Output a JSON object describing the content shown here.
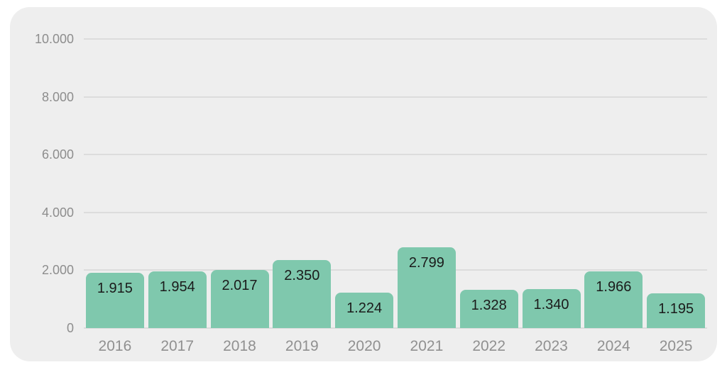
{
  "chart_data": {
    "type": "bar",
    "title": "",
    "xlabel": "",
    "ylabel": "",
    "categories": [
      "2016",
      "2017",
      "2018",
      "2019",
      "2020",
      "2021",
      "2022",
      "2023",
      "2024",
      "2025"
    ],
    "values": [
      1915,
      1954,
      2017,
      2350,
      1224,
      2799,
      1328,
      1340,
      1966,
      1195
    ],
    "bar_labels": [
      "1.915",
      "1.954",
      "2.017",
      "2.350",
      "1.224",
      "2.799",
      "1.328",
      "1.340",
      "1.966",
      "1.195"
    ],
    "y_ticks": [
      {
        "label": "10.000",
        "value": 10000
      },
      {
        "label": "8.000",
        "value": 8000
      },
      {
        "label": "6.000",
        "value": 6000
      },
      {
        "label": "4.000",
        "value": 4000
      },
      {
        "label": "2.000",
        "value": 2000
      },
      {
        "label": "0",
        "value": 0
      }
    ],
    "ylim": [
      0,
      10000
    ],
    "grid": true,
    "legend": false,
    "colors": {
      "bar": "#7fc8ad",
      "card_background": "#eeeeee",
      "gridline": "#dcdcdc",
      "bar_label_text": "#1b1b1b",
      "axis_label_text": "#909090"
    }
  }
}
